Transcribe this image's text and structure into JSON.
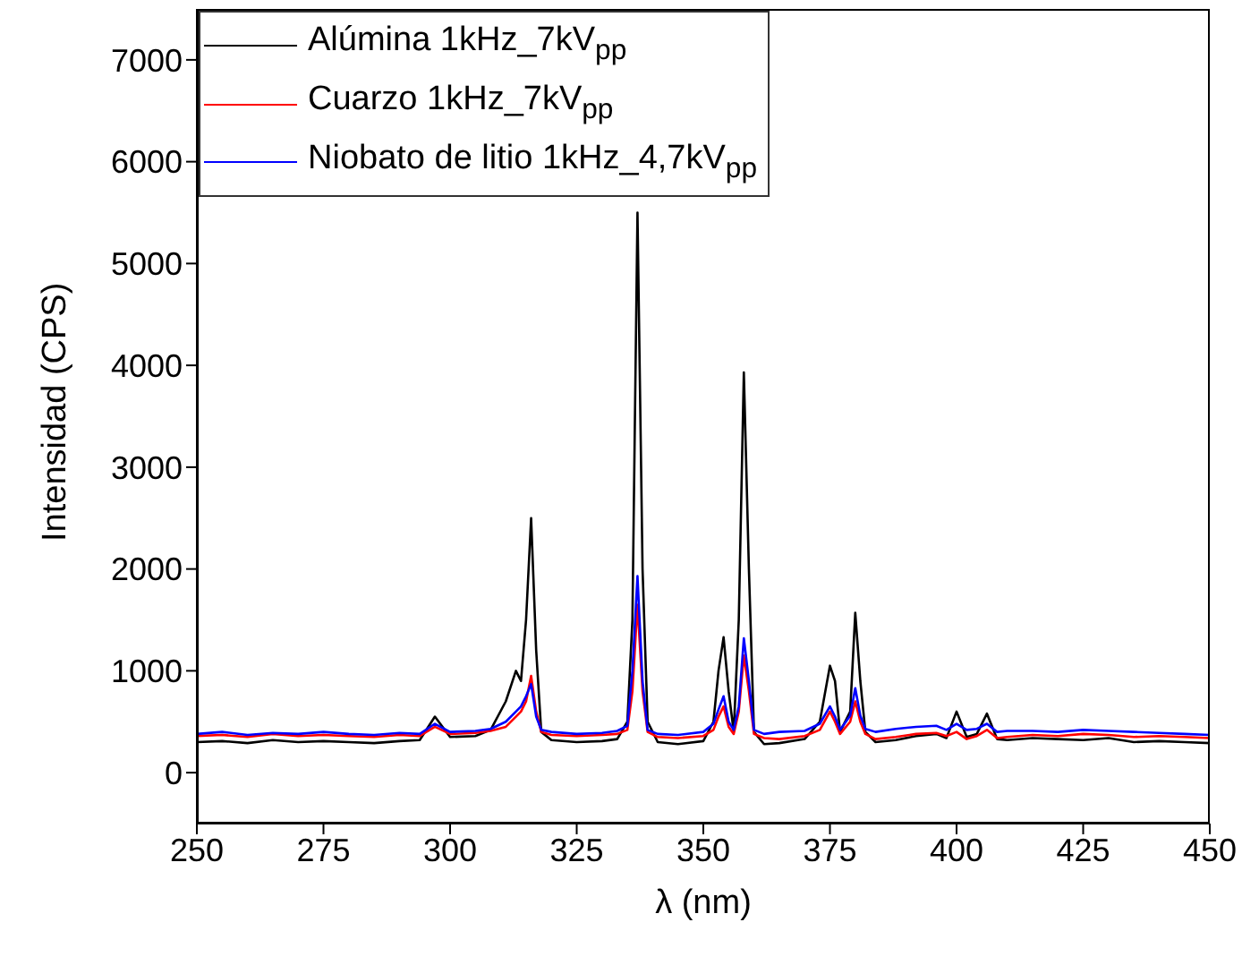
{
  "chart_data": {
    "type": "line",
    "xlabel": "λ (nm)",
    "ylabel": "Intensidad (CPS)",
    "xlim": [
      250,
      450
    ],
    "xticks": [
      250,
      275,
      300,
      325,
      350,
      375,
      400,
      425,
      450
    ],
    "ylim": [
      -500,
      7500
    ],
    "yticks": [
      0,
      1000,
      2000,
      3000,
      4000,
      5000,
      6000,
      7000
    ],
    "legend": "top left",
    "marker": "none",
    "line_style": "solid",
    "x": [
      250,
      255,
      260,
      265,
      270,
      275,
      280,
      285,
      290,
      294,
      297,
      300,
      305,
      308,
      311,
      313,
      314,
      315,
      316,
      317,
      318,
      320,
      325,
      330,
      333,
      335,
      336,
      337,
      338,
      339,
      341,
      345,
      350,
      352,
      353,
      354,
      355,
      356,
      357,
      358,
      359,
      360,
      362,
      365,
      370,
      373,
      375,
      376,
      377,
      379,
      380,
      381,
      382,
      384,
      388,
      392,
      396,
      398,
      400,
      402,
      404,
      406,
      408,
      410,
      415,
      420,
      425,
      430,
      435,
      440,
      445,
      450
    ],
    "series": [
      {
        "name": "Alúmina 1kHz_7kV$_{pp}$",
        "color": "#000000",
        "values": [
          300,
          310,
          290,
          320,
          300,
          310,
          300,
          290,
          310,
          320,
          550,
          350,
          360,
          420,
          700,
          1000,
          900,
          1500,
          2500,
          1200,
          400,
          320,
          300,
          310,
          330,
          500,
          1500,
          5500,
          2000,
          500,
          300,
          280,
          310,
          500,
          1000,
          1330,
          800,
          400,
          1500,
          3930,
          2000,
          400,
          280,
          290,
          330,
          500,
          1050,
          900,
          400,
          600,
          1570,
          900,
          400,
          300,
          320,
          360,
          380,
          340,
          600,
          350,
          380,
          580,
          330,
          320,
          340,
          330,
          320,
          340,
          300,
          310,
          300,
          290
        ]
      },
      {
        "name": "Cuarzo 1kHz_7kV$_{pp}$",
        "color": "#ff0000",
        "values": [
          360,
          370,
          350,
          380,
          360,
          370,
          360,
          350,
          370,
          360,
          450,
          380,
          390,
          410,
          450,
          550,
          600,
          700,
          950,
          600,
          400,
          370,
          360,
          370,
          380,
          420,
          800,
          1650,
          800,
          400,
          350,
          340,
          360,
          420,
          550,
          650,
          450,
          380,
          600,
          1150,
          800,
          380,
          340,
          330,
          360,
          420,
          600,
          500,
          380,
          500,
          700,
          500,
          380,
          330,
          350,
          380,
          390,
          360,
          400,
          330,
          360,
          420,
          340,
          350,
          370,
          360,
          380,
          370,
          350,
          360,
          350,
          340
        ]
      },
      {
        "name": "Niobato de litio 1kHz_4,7kV$_{pp}$",
        "color": "#0000ff",
        "values": [
          380,
          400,
          370,
          390,
          380,
          400,
          380,
          370,
          390,
          380,
          480,
          400,
          410,
          430,
          500,
          600,
          650,
          750,
          870,
          550,
          420,
          400,
          380,
          390,
          410,
          460,
          1000,
          1930,
          900,
          420,
          380,
          370,
          400,
          480,
          620,
          750,
          500,
          420,
          650,
          1320,
          900,
          420,
          380,
          400,
          410,
          480,
          650,
          550,
          420,
          560,
          830,
          560,
          430,
          400,
          430,
          450,
          460,
          420,
          480,
          420,
          430,
          480,
          400,
          410,
          410,
          400,
          420,
          410,
          400,
          390,
          380,
          370
        ]
      }
    ]
  }
}
